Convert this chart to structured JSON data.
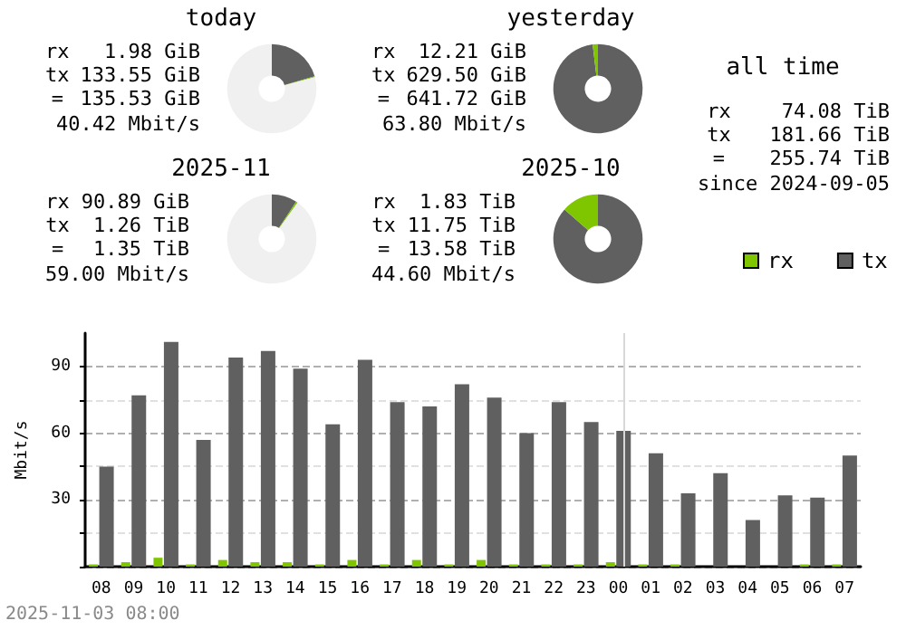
{
  "chart_data": [
    {
      "type": "donut",
      "title": "today",
      "categories": [
        null,
        null,
        null
      ],
      "values": [
        20.5,
        0.3,
        79.2
      ],
      "colors": [
        "#606060",
        "#7fc600",
        "#f0f0f0"
      ],
      "annotations": [
        "rx",
        "1.98 GiB",
        "tx",
        "133.55 GiB",
        "=",
        "135.53 GiB",
        "40.42 Mbit/s"
      ]
    },
    {
      "type": "donut",
      "title": "yesterday",
      "categories": [
        null,
        null
      ],
      "values": [
        98.1,
        1.9
      ],
      "colors": [
        "#606060",
        "#7fc600"
      ],
      "annotations": [
        "rx",
        "12.21 GiB",
        "tx",
        "629.50 GiB",
        "=",
        "641.72 GiB",
        "63.80 Mbit/s"
      ]
    },
    {
      "type": "donut",
      "title": "2025-11",
      "categories": [
        null,
        null,
        null
      ],
      "values": [
        9.2,
        0.6,
        90.2
      ],
      "colors": [
        "#606060",
        "#7fc600",
        "#f0f0f0"
      ],
      "annotations": [
        "rx",
        "90.89 GiB",
        "tx",
        "1.26 TiB",
        "=",
        "1.35 TiB",
        "59.00 Mbit/s"
      ]
    },
    {
      "type": "donut",
      "title": "2025-10",
      "categories": [
        null,
        null
      ],
      "values": [
        86.5,
        13.5
      ],
      "colors": [
        "#606060",
        "#7fc600"
      ],
      "annotations": [
        "rx",
        "1.83 TiB",
        "tx",
        "11.75 TiB",
        "=",
        "13.58 TiB",
        "44.60 Mbit/s"
      ]
    },
    {
      "type": "other",
      "title": "all time",
      "annotations": [
        "rx",
        "74.08 TiB",
        "tx",
        "181.66 TiB",
        "=",
        "255.74 TiB",
        "since 2024-09-05"
      ]
    },
    {
      "type": "bar",
      "categories": [
        "08",
        "09",
        "10",
        "11",
        "12",
        "13",
        "14",
        "15",
        "16",
        "17",
        "18",
        "19",
        "20",
        "21",
        "22",
        "23",
        "00",
        "01",
        "02",
        "03",
        "04",
        "05",
        "06",
        "07"
      ],
      "series": [
        {
          "name": "rx",
          "color": "#7fc600",
          "values": [
            1,
            2,
            4,
            1,
            3,
            2,
            2,
            1,
            3,
            1,
            3,
            1,
            3,
            1,
            1,
            1,
            2,
            1,
            1,
            0,
            0,
            0,
            1,
            1
          ]
        },
        {
          "name": "tx",
          "color": "#606060",
          "values": [
            45,
            77,
            101,
            57,
            94,
            97,
            89,
            64,
            93,
            74,
            72,
            82,
            76,
            60,
            74,
            65,
            61,
            51,
            33,
            42,
            21,
            32,
            31,
            50
          ]
        }
      ],
      "ylabel": "Mbit/s",
      "ylim": [
        0,
        105
      ],
      "yticks": [
        {
          "value": 0,
          "label": null
        },
        {
          "value": 15,
          "label": null
        },
        30,
        {
          "value": 45,
          "label": null
        },
        60,
        {
          "value": 75,
          "label": null
        },
        90
      ],
      "grid": "y",
      "legend": "right",
      "ref_lines": [
        {
          "axis": "x",
          "value": "00"
        }
      ],
      "annotations": [
        "2025-11-03 08:00"
      ]
    }
  ]
}
